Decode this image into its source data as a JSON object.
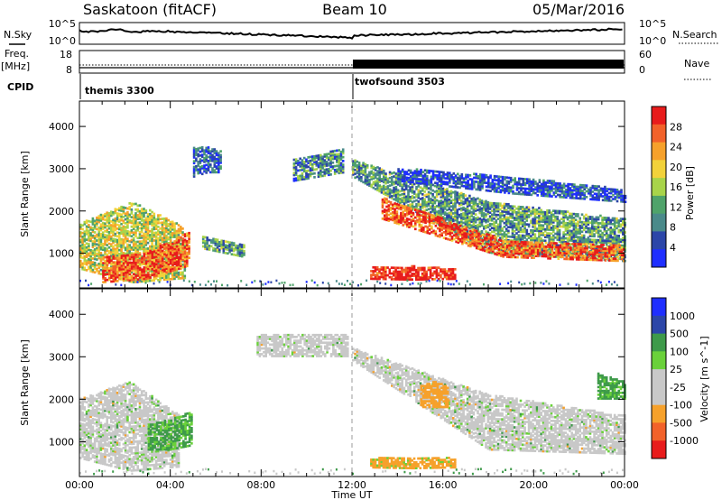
{
  "header": {
    "site": "Saskatoon (fitACF)",
    "beam": "Beam 10",
    "date": "05/Mar/2016"
  },
  "noise_panel": {
    "left_label": "N.Sky",
    "right_label": "N.Search",
    "left_ticks": [
      "10^5",
      "10^0"
    ],
    "right_ticks": [
      "10^5",
      "10^0"
    ]
  },
  "freq_panel": {
    "left_label_1": "Freq.",
    "left_label_2": "[MHz]",
    "cpid_label": "CPID",
    "right_label": "Nave",
    "left_ticks": [
      "18",
      "8"
    ],
    "right_ticks": [
      "60",
      "0"
    ]
  },
  "cpid": [
    {
      "name": "themis 3300",
      "start_hour": 0
    },
    {
      "name": "twofsound 3503",
      "start_hour": 12
    }
  ],
  "colors": {
    "power": [
      "#1f2fff",
      "#2c46a8",
      "#4a8a8a",
      "#4fa36a",
      "#a8d44a",
      "#f2d23a",
      "#f6a12b",
      "#f2622a",
      "#e81c1c"
    ],
    "velocity": [
      "#e81c1c",
      "#f2622a",
      "#f6a12b",
      "#c8c8c8",
      "#c8c8c8",
      "#6ad13a",
      "#3e9a4a",
      "#2c46a8",
      "#1f2fff"
    ],
    "ground_scatter": "#c8c8c8"
  },
  "chart_data": [
    {
      "type": "heatmap",
      "parameter": "Power",
      "ylabel": "Slant Range [km]",
      "yticks": [
        1000,
        2000,
        3000,
        4000
      ],
      "ylim": [
        180,
        4600
      ],
      "xlim": [
        0,
        24
      ],
      "colorbar": {
        "label": "Power [dB]",
        "ticks": [
          "4",
          "8",
          "12",
          "16",
          "20",
          "24",
          "28"
        ],
        "range": [
          0,
          30
        ]
      },
      "regions": [
        {
          "t": [
            0.0,
            4.6
          ],
          "r_lo": [
            620,
            300,
            400
          ],
          "r_hi": [
            1700,
            2200,
            1600
          ],
          "level": 0.55
        },
        {
          "t": [
            1.0,
            4.8
          ],
          "r_lo": [
            300,
            380,
            700
          ],
          "r_hi": [
            900,
            1000,
            1500
          ],
          "level": 0.85
        },
        {
          "t": [
            5.4,
            7.2
          ],
          "r_lo": [
            1100,
            1000,
            900
          ],
          "r_hi": [
            1400,
            1300,
            1200
          ],
          "level": 0.35
        },
        {
          "t": [
            5.0,
            6.2
          ],
          "r_lo": [
            2800,
            2900,
            2900
          ],
          "r_hi": [
            3500,
            3500,
            3400
          ],
          "level": 0.2
        },
        {
          "t": [
            9.4,
            11.6
          ],
          "r_lo": [
            2700,
            2800,
            2900
          ],
          "r_hi": [
            3200,
            3300,
            3500
          ],
          "level": 0.3
        },
        {
          "t": [
            12.8,
            16.5
          ],
          "r_lo": [
            380,
            360,
            380
          ],
          "r_hi": [
            650,
            680,
            620
          ],
          "level": 0.98
        },
        {
          "t": [
            12.0,
            24.0
          ],
          "r_lo": [
            2800,
            1000,
            800
          ],
          "r_hi": [
            3200,
            2200,
            1800
          ],
          "level": 0.35
        },
        {
          "t": [
            13.3,
            24.0
          ],
          "r_lo": [
            1800,
            900,
            800
          ],
          "r_hi": [
            2300,
            1300,
            1200
          ],
          "level": 0.85
        },
        {
          "t": [
            14.0,
            24.0
          ],
          "r_lo": [
            2700,
            2400,
            2200
          ],
          "r_hi": [
            3000,
            2800,
            2500
          ],
          "level": 0.15
        }
      ]
    },
    {
      "type": "heatmap",
      "parameter": "Velocity",
      "ylabel": "Slant Range [km]",
      "xlabel": "Time UT",
      "yticks": [
        1000,
        2000,
        3000,
        4000
      ],
      "ylim": [
        180,
        4600
      ],
      "xlim": [
        0,
        24
      ],
      "xticks": [
        "00:00",
        "04:00",
        "08:00",
        "12:00",
        "16:00",
        "20:00",
        "00:00"
      ],
      "colorbar": {
        "label": "Velocity [m s^-1]",
        "ticks": [
          "1000",
          "500",
          "100",
          "25",
          "-25",
          "-100",
          "-500",
          "-1000"
        ],
        "range": [
          -1200,
          1200
        ]
      },
      "regions": [
        {
          "t": [
            0.0,
            4.4
          ],
          "r_lo": [
            600,
            300,
            400
          ],
          "r_hi": [
            2000,
            2400,
            1600
          ],
          "value": 0,
          "gs": true
        },
        {
          "t": [
            3.0,
            4.9
          ],
          "r_lo": [
            800,
            800,
            900
          ],
          "r_hi": [
            1400,
            1500,
            1700
          ],
          "value": 60
        },
        {
          "t": [
            7.8,
            11.8
          ],
          "r_lo": [
            3000,
            3000,
            3000
          ],
          "r_hi": [
            3500,
            3500,
            3500
          ],
          "value": 0,
          "gs": true
        },
        {
          "t": [
            12.8,
            16.5
          ],
          "r_lo": [
            380,
            360,
            380
          ],
          "r_hi": [
            600,
            620,
            600
          ],
          "value": -80
        },
        {
          "t": [
            12.0,
            24.0
          ],
          "r_lo": [
            2900,
            800,
            700
          ],
          "r_hi": [
            3200,
            2100,
            1600
          ],
          "value": 0,
          "gs": true
        },
        {
          "t": [
            15.0,
            16.2
          ],
          "r_lo": [
            1800,
            1800,
            1800
          ],
          "r_hi": [
            2300,
            2400,
            2300
          ],
          "value": -150
        },
        {
          "t": [
            22.8,
            24.0
          ],
          "r_lo": [
            2000,
            2000,
            2000
          ],
          "r_hi": [
            2600,
            2500,
            2400
          ],
          "value": 70
        }
      ]
    }
  ]
}
